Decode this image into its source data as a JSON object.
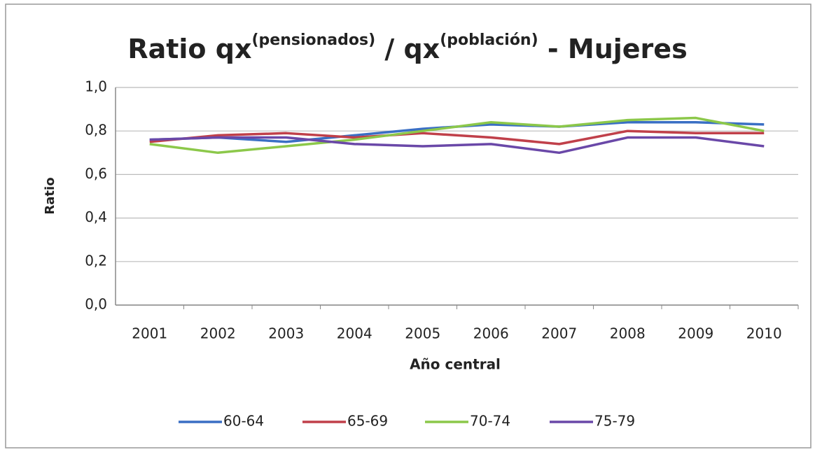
{
  "chart_data": {
    "type": "line",
    "title": [
      "Ratio qx",
      "(pensionados)",
      " / qx",
      "(población)",
      " - Mujeres"
    ],
    "x_label": "Año central",
    "y_label": "Ratio",
    "categories": [
      "2001",
      "2002",
      "2003",
      "2004",
      "2005",
      "2006",
      "2007",
      "2008",
      "2009",
      "2010"
    ],
    "series": [
      {
        "name": "60-64",
        "color": "#3a6fc4",
        "values": [
          0.76,
          0.77,
          0.75,
          0.78,
          0.81,
          0.83,
          0.82,
          0.84,
          0.84,
          0.83
        ]
      },
      {
        "name": "65-69",
        "color": "#c0404a",
        "values": [
          0.75,
          0.78,
          0.79,
          0.77,
          0.79,
          0.77,
          0.74,
          0.8,
          0.79,
          0.79
        ]
      },
      {
        "name": "70-74",
        "color": "#8cc84a",
        "values": [
          0.74,
          0.7,
          0.73,
          0.76,
          0.8,
          0.84,
          0.82,
          0.85,
          0.86,
          0.8
        ]
      },
      {
        "name": "75-79",
        "color": "#6a48a8",
        "values": [
          0.76,
          0.77,
          0.77,
          0.74,
          0.73,
          0.74,
          0.7,
          0.77,
          0.77,
          0.73
        ]
      }
    ],
    "ylim": [
      0,
      1
    ],
    "yticks": [
      {
        "value": 0,
        "label": "0,0"
      },
      {
        "value": 0.2,
        "label": "0,2"
      },
      {
        "value": 0.4,
        "label": "0,4"
      },
      {
        "value": 0.6,
        "label": "0,6"
      },
      {
        "value": 0.8,
        "label": "0,8"
      },
      {
        "value": 1,
        "label": "1,0"
      }
    ],
    "grid": true,
    "legend": "bottom"
  }
}
